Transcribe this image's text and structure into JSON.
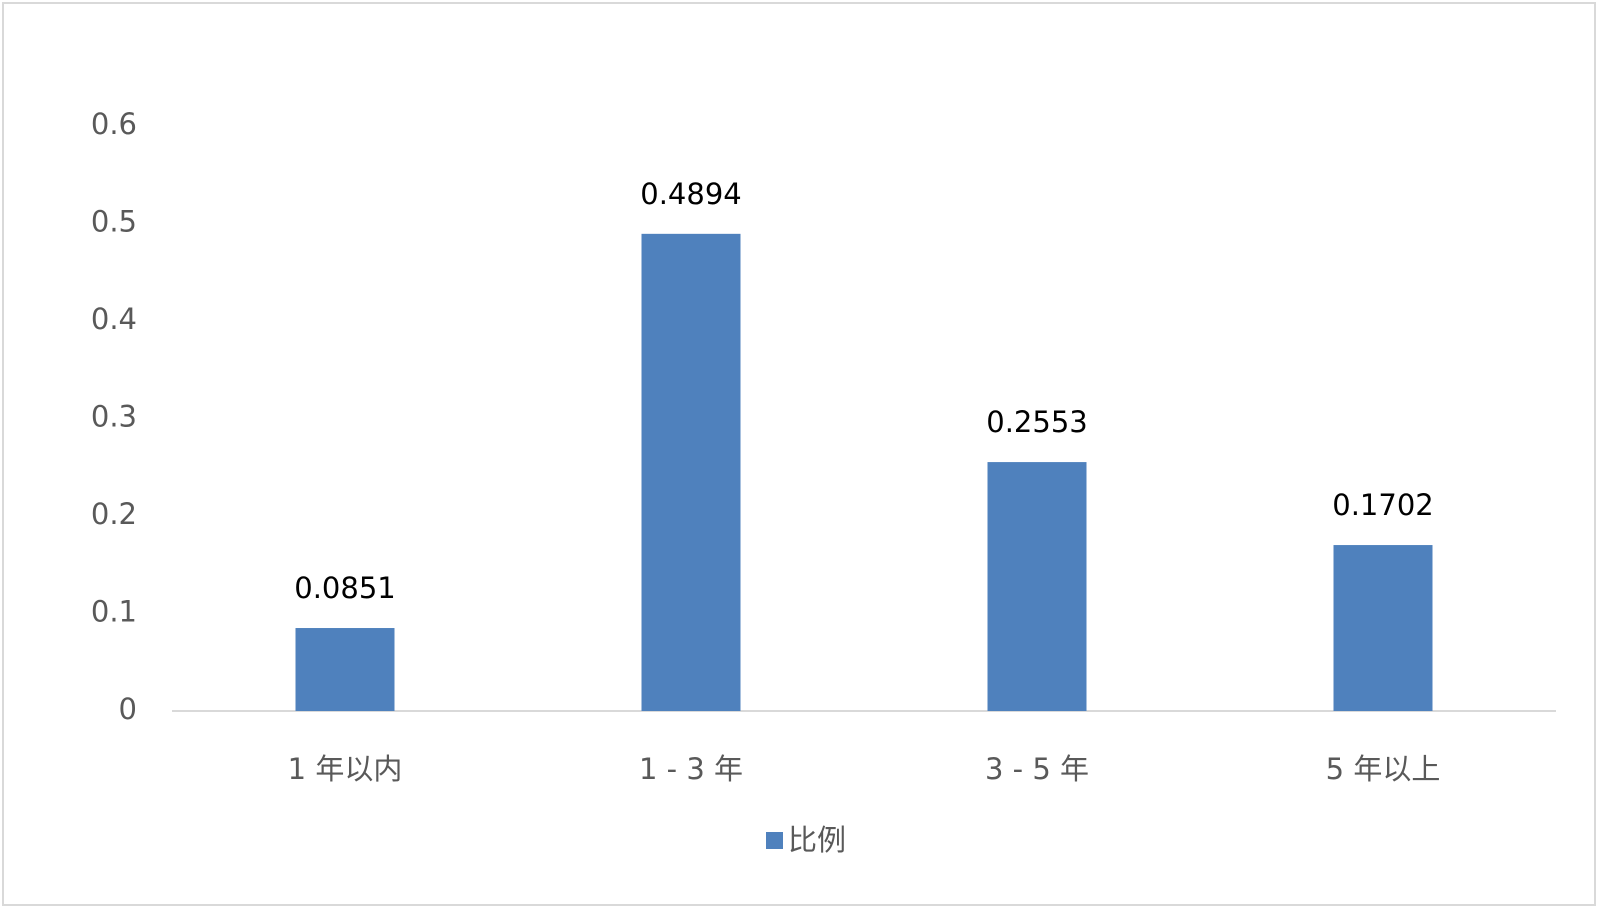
{
  "chart_data": {
    "type": "bar",
    "categories": [
      "1 年以内",
      "1 - 3 年",
      "3 - 5 年",
      "5 年以上"
    ],
    "series": [
      {
        "name": "比例",
        "color": "#4f81bd",
        "values": [
          0.0851,
          0.4894,
          0.2553,
          0.1702
        ]
      }
    ],
    "ylim": [
      0,
      0.6
    ],
    "yticks": [
      0,
      0.1,
      0.2,
      0.3,
      0.4,
      0.5,
      0.6
    ],
    "grid": false,
    "legend": "bottom"
  }
}
